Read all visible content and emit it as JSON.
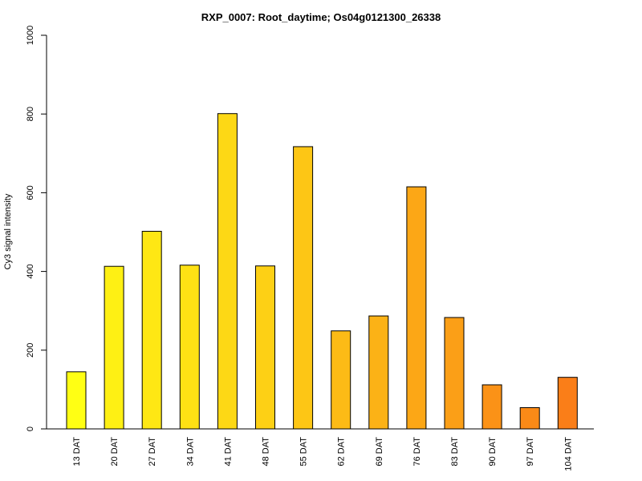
{
  "chart_data": {
    "type": "bar",
    "title": "RXP_0007: Root_daytime; Os04g0121300_26338",
    "xlabel": "",
    "ylabel": "Cy3 signal intensity",
    "ylim": [
      0,
      1000
    ],
    "yticks": [
      "0",
      "200",
      "400",
      "600",
      "800",
      "1000"
    ],
    "categories": [
      "13 DAT",
      "20 DAT",
      "27 DAT",
      "34 DAT",
      "41 DAT",
      "48 DAT",
      "55 DAT",
      "62 DAT",
      "69 DAT",
      "76 DAT",
      "83 DAT",
      "90 DAT",
      "97 DAT",
      "104 DAT"
    ],
    "values": [
      145,
      413,
      502,
      416,
      801,
      414,
      717,
      249,
      287,
      615,
      283,
      112,
      54,
      131
    ],
    "colors": [
      "#FFFF14",
      "#FEF014",
      "#FEE714",
      "#FEE114",
      "#FDD815",
      "#FDD015",
      "#FDC615",
      "#FCBB16",
      "#FCB216",
      "#FCA716",
      "#FB9F17",
      "#FB9217",
      "#FA8A17",
      "#FA7E18"
    ],
    "grid": false,
    "legend": "none"
  }
}
